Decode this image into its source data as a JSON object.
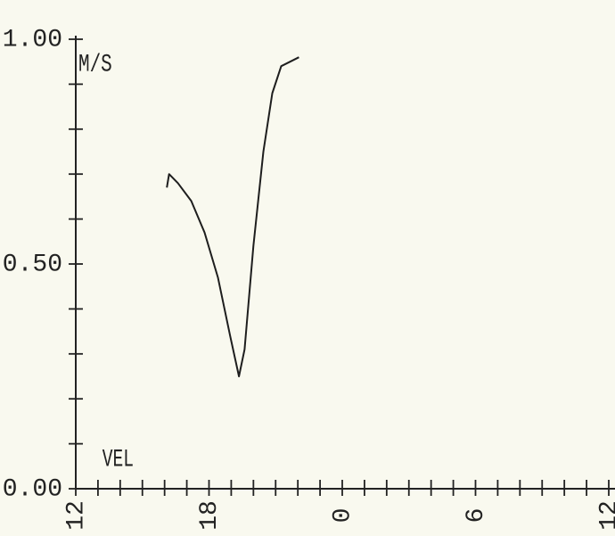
{
  "chart_data": {
    "type": "line",
    "y_label": "M/S",
    "annotation": "VEL",
    "x": [
      4.1,
      4.2,
      4.6,
      5.2,
      5.8,
      6.4,
      6.95,
      7.35,
      7.6,
      8.0,
      8.45,
      8.85,
      9.25,
      10.05
    ],
    "series": [
      {
        "color": "#1e1e1e",
        "values": [
          0.67,
          0.7,
          0.68,
          0.64,
          0.57,
          0.47,
          0.34,
          0.25,
          0.31,
          0.54,
          0.75,
          0.88,
          0.94,
          0.96
        ]
      }
    ],
    "xlim": [
      0,
      24
    ],
    "xticks": [
      {
        "value": 0,
        "label": "12"
      },
      {
        "value": 6,
        "label": "18"
      },
      {
        "value": 12,
        "label": "0"
      },
      {
        "value": 18,
        "label": "6"
      },
      {
        "value": 24,
        "label": "12"
      }
    ],
    "xminorticks": [
      1,
      2,
      3,
      4,
      5,
      7,
      8,
      9,
      10,
      11,
      13,
      14,
      15,
      16,
      17,
      19,
      20,
      21,
      22,
      23
    ],
    "ylim": [
      0,
      1
    ],
    "yticks": [
      {
        "value": 0,
        "label": "0.00"
      },
      {
        "value": 0.5,
        "label": "0.50"
      },
      {
        "value": 1,
        "label": "1.00"
      }
    ],
    "yminorticks": [
      0.1,
      0.2,
      0.3,
      0.4,
      0.6,
      0.7,
      0.8,
      0.9
    ]
  }
}
